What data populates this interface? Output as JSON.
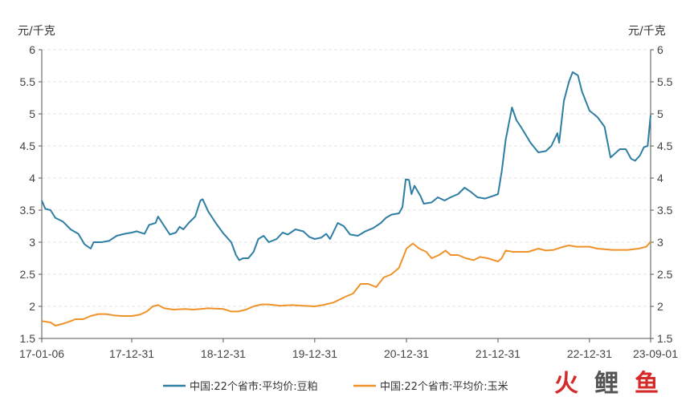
{
  "chart_data": {
    "type": "line",
    "y_unit_left": "元/千克",
    "y_unit_right": "元/千克",
    "ylim": [
      1.5,
      6
    ],
    "yticks": [
      "6",
      "5.5",
      "5",
      "4.5",
      "4",
      "3.5",
      "3",
      "2.5",
      "2",
      "1.5"
    ],
    "ytick_values": [
      6,
      5.5,
      5,
      4.5,
      4,
      3.5,
      3,
      2.5,
      2,
      1.5
    ],
    "xlim": [
      "2017-01-06",
      "2023-09-01"
    ],
    "xticks": [
      {
        "label": "17-01-06",
        "date": "2017-01-06"
      },
      {
        "label": "17-12-31",
        "date": "2017-12-31"
      },
      {
        "label": "18-12-31",
        "date": "2018-12-31"
      },
      {
        "label": "19-12-31",
        "date": "2019-12-31"
      },
      {
        "label": "20-12-31",
        "date": "2020-12-31"
      },
      {
        "label": "21-12-31",
        "date": "2021-12-31"
      },
      {
        "label": "22-12-31",
        "date": "2022-12-31"
      },
      {
        "label": "23-09-01",
        "date": "2023-09-01"
      }
    ],
    "grid": true,
    "legend_position": "bottom",
    "series": [
      {
        "name": "中国:22个省市:平均价:豆粕",
        "color": "#2e7ea3",
        "points": [
          [
            "2017-01-06",
            3.65
          ],
          [
            "2017-01-20",
            3.52
          ],
          [
            "2017-02-10",
            3.5
          ],
          [
            "2017-03-01",
            3.38
          ],
          [
            "2017-04-01",
            3.32
          ],
          [
            "2017-05-01",
            3.2
          ],
          [
            "2017-06-01",
            3.13
          ],
          [
            "2017-06-25",
            2.97
          ],
          [
            "2017-07-20",
            2.9
          ],
          [
            "2017-08-01",
            3.0
          ],
          [
            "2017-09-01",
            3.0
          ],
          [
            "2017-10-01",
            3.02
          ],
          [
            "2017-11-01",
            3.1
          ],
          [
            "2017-12-01",
            3.13
          ],
          [
            "2017-12-31",
            3.15
          ],
          [
            "2018-01-20",
            3.17
          ],
          [
            "2018-02-20",
            3.13
          ],
          [
            "2018-03-10",
            3.27
          ],
          [
            "2018-04-05",
            3.3
          ],
          [
            "2018-04-15",
            3.4
          ],
          [
            "2018-05-10",
            3.25
          ],
          [
            "2018-06-01",
            3.12
          ],
          [
            "2018-06-25",
            3.15
          ],
          [
            "2018-07-10",
            3.24
          ],
          [
            "2018-07-25",
            3.2
          ],
          [
            "2018-08-15",
            3.3
          ],
          [
            "2018-09-10",
            3.4
          ],
          [
            "2018-10-01",
            3.65
          ],
          [
            "2018-10-10",
            3.67
          ],
          [
            "2018-11-01",
            3.48
          ],
          [
            "2018-12-01",
            3.3
          ],
          [
            "2018-12-31",
            3.14
          ],
          [
            "2019-02-01",
            3.0
          ],
          [
            "2019-02-20",
            2.8
          ],
          [
            "2019-03-05",
            2.72
          ],
          [
            "2019-03-20",
            2.75
          ],
          [
            "2019-04-10",
            2.75
          ],
          [
            "2019-05-01",
            2.85
          ],
          [
            "2019-05-20",
            3.05
          ],
          [
            "2019-06-10",
            3.1
          ],
          [
            "2019-07-01",
            3.0
          ],
          [
            "2019-08-01",
            3.05
          ],
          [
            "2019-08-25",
            3.15
          ],
          [
            "2019-09-15",
            3.12
          ],
          [
            "2019-10-15",
            3.2
          ],
          [
            "2019-11-15",
            3.17
          ],
          [
            "2019-12-10",
            3.08
          ],
          [
            "2019-12-31",
            3.05
          ],
          [
            "2020-01-25",
            3.07
          ],
          [
            "2020-02-15",
            3.13
          ],
          [
            "2020-03-01",
            3.05
          ],
          [
            "2020-04-01",
            3.3
          ],
          [
            "2020-04-25",
            3.25
          ],
          [
            "2020-05-20",
            3.12
          ],
          [
            "2020-06-20",
            3.1
          ],
          [
            "2020-07-20",
            3.17
          ],
          [
            "2020-08-20",
            3.22
          ],
          [
            "2020-09-20",
            3.3
          ],
          [
            "2020-10-10",
            3.38
          ],
          [
            "2020-11-01",
            3.43
          ],
          [
            "2020-12-01",
            3.45
          ],
          [
            "2020-12-15",
            3.55
          ],
          [
            "2020-12-28",
            3.98
          ],
          [
            "2021-01-10",
            3.97
          ],
          [
            "2021-01-20",
            3.75
          ],
          [
            "2021-02-01",
            3.88
          ],
          [
            "2021-02-25",
            3.72
          ],
          [
            "2021-03-10",
            3.6
          ],
          [
            "2021-04-10",
            3.62
          ],
          [
            "2021-05-05",
            3.7
          ],
          [
            "2021-06-01",
            3.65
          ],
          [
            "2021-06-25",
            3.7
          ],
          [
            "2021-07-25",
            3.75
          ],
          [
            "2021-08-20",
            3.85
          ],
          [
            "2021-09-15",
            3.78
          ],
          [
            "2021-10-10",
            3.7
          ],
          [
            "2021-11-10",
            3.68
          ],
          [
            "2021-12-10",
            3.72
          ],
          [
            "2021-12-31",
            3.75
          ],
          [
            "2022-01-15",
            4.1
          ],
          [
            "2022-01-31",
            4.6
          ],
          [
            "2022-02-25",
            5.1
          ],
          [
            "2022-03-15",
            4.9
          ],
          [
            "2022-04-01",
            4.8
          ],
          [
            "2022-05-10",
            4.55
          ],
          [
            "2022-06-10",
            4.4
          ],
          [
            "2022-07-10",
            4.42
          ],
          [
            "2022-08-01",
            4.5
          ],
          [
            "2022-08-25",
            4.7
          ],
          [
            "2022-09-01",
            4.55
          ],
          [
            "2022-09-20",
            5.2
          ],
          [
            "2022-10-10",
            5.5
          ],
          [
            "2022-10-25",
            5.65
          ],
          [
            "2022-11-15",
            5.6
          ],
          [
            "2022-12-01",
            5.35
          ],
          [
            "2022-12-31",
            5.05
          ],
          [
            "2023-02-01",
            4.95
          ],
          [
            "2023-03-01",
            4.8
          ],
          [
            "2023-03-25",
            4.32
          ],
          [
            "2023-05-01",
            4.45
          ],
          [
            "2023-05-25",
            4.45
          ],
          [
            "2023-06-15",
            4.3
          ],
          [
            "2023-07-01",
            4.27
          ],
          [
            "2023-07-20",
            4.35
          ],
          [
            "2023-08-05",
            4.48
          ],
          [
            "2023-08-20",
            4.5
          ],
          [
            "2023-09-01",
            4.98
          ]
        ]
      },
      {
        "name": "中国:22个省市:平均价:玉米",
        "color": "#f0922a",
        "points": [
          [
            "2017-01-06",
            1.77
          ],
          [
            "2017-02-10",
            1.75
          ],
          [
            "2017-03-01",
            1.7
          ],
          [
            "2017-04-01",
            1.73
          ],
          [
            "2017-05-01",
            1.77
          ],
          [
            "2017-05-20",
            1.8
          ],
          [
            "2017-06-20",
            1.8
          ],
          [
            "2017-07-20",
            1.85
          ],
          [
            "2017-08-20",
            1.88
          ],
          [
            "2017-09-20",
            1.88
          ],
          [
            "2017-10-20",
            1.86
          ],
          [
            "2017-11-20",
            1.85
          ],
          [
            "2017-12-31",
            1.85
          ],
          [
            "2018-02-01",
            1.87
          ],
          [
            "2018-03-01",
            1.92
          ],
          [
            "2018-03-25",
            2.0
          ],
          [
            "2018-04-15",
            2.02
          ],
          [
            "2018-05-10",
            1.97
          ],
          [
            "2018-06-15",
            1.95
          ],
          [
            "2018-08-01",
            1.96
          ],
          [
            "2018-09-01",
            1.95
          ],
          [
            "2018-10-01",
            1.96
          ],
          [
            "2018-11-01",
            1.97
          ],
          [
            "2018-12-31",
            1.96
          ],
          [
            "2019-02-01",
            1.92
          ],
          [
            "2019-03-01",
            1.92
          ],
          [
            "2019-04-01",
            1.95
          ],
          [
            "2019-05-01",
            2.0
          ],
          [
            "2019-06-01",
            2.03
          ],
          [
            "2019-07-01",
            2.03
          ],
          [
            "2019-08-15",
            2.01
          ],
          [
            "2019-10-01",
            2.02
          ],
          [
            "2019-11-15",
            2.01
          ],
          [
            "2019-12-31",
            2.0
          ],
          [
            "2020-02-01",
            2.02
          ],
          [
            "2020-03-15",
            2.06
          ],
          [
            "2020-05-01",
            2.15
          ],
          [
            "2020-06-01",
            2.2
          ],
          [
            "2020-07-01",
            2.35
          ],
          [
            "2020-08-01",
            2.35
          ],
          [
            "2020-09-01",
            2.3
          ],
          [
            "2020-10-01",
            2.45
          ],
          [
            "2020-11-01",
            2.5
          ],
          [
            "2020-12-01",
            2.6
          ],
          [
            "2020-12-31",
            2.9
          ],
          [
            "2021-01-25",
            2.98
          ],
          [
            "2021-02-20",
            2.9
          ],
          [
            "2021-03-20",
            2.85
          ],
          [
            "2021-04-10",
            2.75
          ],
          [
            "2021-05-10",
            2.8
          ],
          [
            "2021-06-05",
            2.87
          ],
          [
            "2021-06-25",
            2.8
          ],
          [
            "2021-07-25",
            2.8
          ],
          [
            "2021-08-25",
            2.75
          ],
          [
            "2021-09-25",
            2.72
          ],
          [
            "2021-10-20",
            2.77
          ],
          [
            "2021-11-20",
            2.75
          ],
          [
            "2021-12-31",
            2.7
          ],
          [
            "2022-01-15",
            2.75
          ],
          [
            "2022-01-31",
            2.87
          ],
          [
            "2022-03-01",
            2.85
          ],
          [
            "2022-05-01",
            2.85
          ],
          [
            "2022-06-10",
            2.9
          ],
          [
            "2022-07-10",
            2.87
          ],
          [
            "2022-08-10",
            2.88
          ],
          [
            "2022-09-10",
            2.92
          ],
          [
            "2022-10-10",
            2.95
          ],
          [
            "2022-11-10",
            2.93
          ],
          [
            "2022-12-31",
            2.93
          ],
          [
            "2023-02-01",
            2.9
          ],
          [
            "2023-04-01",
            2.88
          ],
          [
            "2023-06-01",
            2.88
          ],
          [
            "2023-07-15",
            2.9
          ],
          [
            "2023-08-15",
            2.93
          ],
          [
            "2023-09-01",
            3.01
          ]
        ]
      }
    ]
  },
  "watermark": {
    "char1": "火",
    "char2": "鲤",
    "char3": "鱼"
  }
}
